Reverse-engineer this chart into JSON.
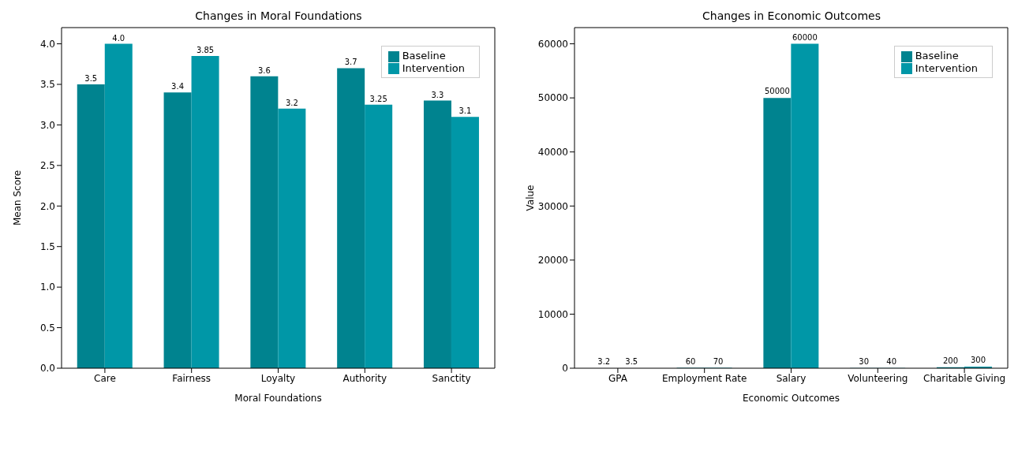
{
  "chart_data": [
    {
      "type": "bar",
      "title": "Changes in Moral Foundations",
      "xlabel": "Moral Foundations",
      "ylabel": "Mean Score",
      "categories": [
        "Care",
        "Fairness",
        "Loyalty",
        "Authority",
        "Sanctity"
      ],
      "series": [
        {
          "name": "Baseline",
          "color": "#00838f",
          "values": [
            3.5,
            3.4,
            3.6,
            3.7,
            3.3
          ],
          "value_labels": [
            "3.5",
            "3.4",
            "3.6",
            "3.7",
            "3.3"
          ]
        },
        {
          "name": "Intervention",
          "color": "#0097a7",
          "values": [
            4.0,
            3.85,
            3.2,
            3.25,
            3.1
          ],
          "value_labels": [
            "4.0",
            "3.85",
            "3.2",
            "3.25",
            "3.1"
          ]
        }
      ],
      "ylim": [
        0,
        4.2
      ],
      "yticks": [
        {
          "value": 0,
          "label": "0.0"
        },
        {
          "value": 0.5,
          "label": "0.5"
        },
        {
          "value": 1,
          "label": "1.0"
        },
        {
          "value": 1.5,
          "label": "1.5"
        },
        {
          "value": 2,
          "label": "2.0"
        },
        {
          "value": 2.5,
          "label": "2.5"
        },
        {
          "value": 3,
          "label": "3.0"
        },
        {
          "value": 3.5,
          "label": "3.5"
        },
        {
          "value": 4,
          "label": "4.0"
        }
      ],
      "legend": "top right",
      "grid": false
    },
    {
      "type": "bar",
      "title": "Changes in Economic Outcomes",
      "xlabel": "Economic Outcomes",
      "ylabel": "Value",
      "categories": [
        "GPA",
        "Employment Rate",
        "Salary",
        "Volunteering",
        "Charitable Giving"
      ],
      "series": [
        {
          "name": "Baseline",
          "color": "#00838f",
          "values": [
            3.2,
            60,
            50000,
            30,
            200
          ]
        },
        {
          "name": "Intervention",
          "color": "#0097a7",
          "values": [
            3.5,
            70,
            60000,
            40,
            300
          ]
        }
      ],
      "ylim": [
        0,
        63000
      ],
      "yticks": [
        0,
        10000,
        20000,
        30000,
        40000,
        50000,
        60000
      ],
      "data_labels": true,
      "legend": "top right",
      "grid": false
    }
  ]
}
